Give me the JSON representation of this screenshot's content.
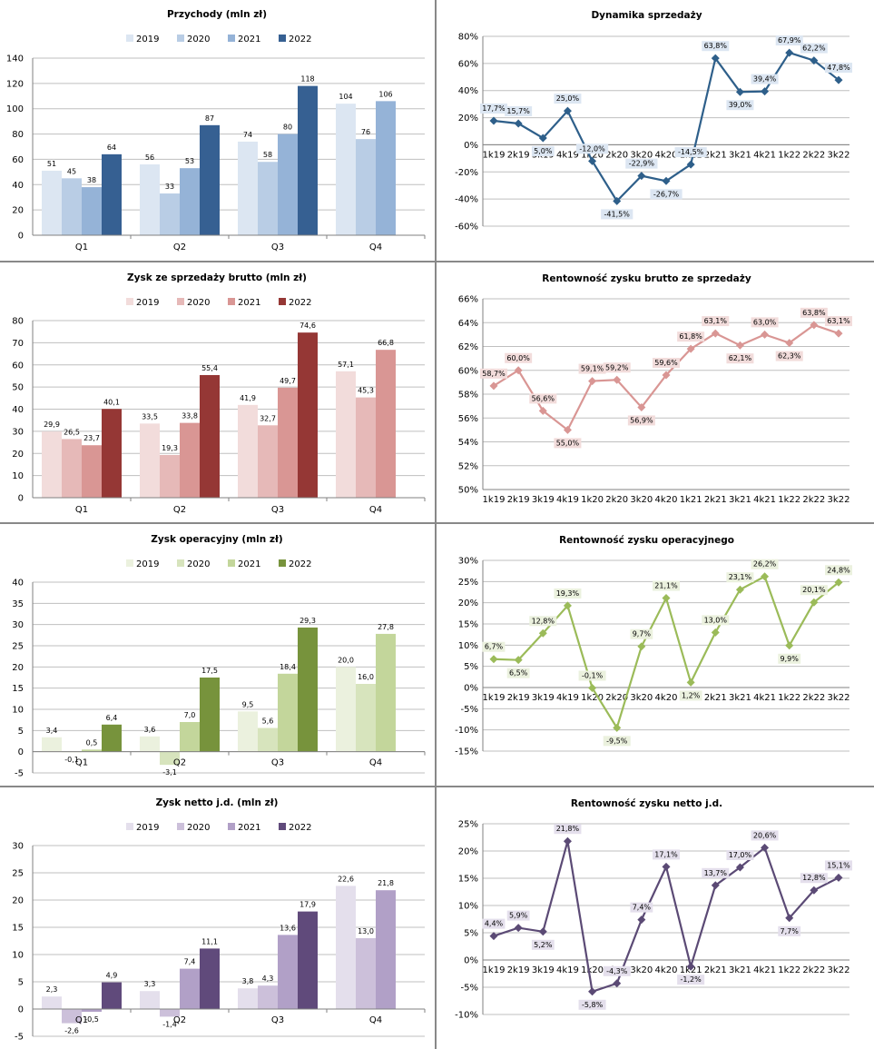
{
  "chart_data": [
    {
      "id": "rev",
      "type": "bar",
      "title": "Przychody  (mln zł)",
      "categories": [
        "Q1",
        "Q2",
        "Q3",
        "Q4"
      ],
      "series": [
        {
          "name": "2019",
          "values": [
            51,
            56,
            74,
            104
          ]
        },
        {
          "name": "2020",
          "values": [
            45,
            33,
            58,
            76
          ]
        },
        {
          "name": "2021",
          "values": [
            38,
            53,
            80,
            106
          ]
        },
        {
          "name": "2022",
          "values": [
            64,
            87,
            118,
            null
          ]
        }
      ],
      "value_labels": [
        [
          "51",
          "56",
          "74",
          "104"
        ],
        [
          "45",
          "33",
          "58",
          "76"
        ],
        [
          "38",
          "53",
          "80",
          "106"
        ],
        [
          "64",
          "87",
          "118",
          ""
        ]
      ],
      "ylim": [
        0,
        140
      ],
      "yticks": [
        "0",
        "20",
        "40",
        "60",
        "80",
        "100",
        "120",
        "140"
      ],
      "colors": [
        "#dce6f2",
        "#b9cde5",
        "#95b3d7",
        "#366092"
      ],
      "legend": "top",
      "grid": true
    },
    {
      "id": "dyn",
      "type": "line",
      "title": "Dynamika sprzedaży",
      "x": [
        "1k19",
        "2k19",
        "3k19",
        "4k19",
        "1k20",
        "2k20",
        "3k20",
        "4k20",
        "1k21",
        "2k21",
        "3k21",
        "4k21",
        "1k22",
        "2k22",
        "3k22"
      ],
      "values": [
        17.7,
        15.7,
        5.0,
        25.0,
        -12.0,
        -41.5,
        -22.9,
        -26.7,
        -14.5,
        63.8,
        39.0,
        39.4,
        67.9,
        62.2,
        47.8
      ],
      "value_labels": [
        "17,7%",
        "15,7%",
        "5,0%",
        "25,0%",
        "-12,0%",
        "-41,5%",
        "-22,9%",
        "-26,7%",
        "-14,5%",
        "63,8%",
        "39,0%",
        "39,4%",
        "67,9%",
        "62,2%",
        "47,8%"
      ],
      "ylim": [
        -60,
        80
      ],
      "yticks": [
        "-60%",
        "-40%",
        "-20%",
        "0%",
        "20%",
        "40%",
        "60%",
        "80%"
      ],
      "color": "#2e5f8a",
      "label_bg": "#dce6f2",
      "grid": true
    },
    {
      "id": "gross",
      "type": "bar",
      "title": "Zysk ze sprzedaży brutto  (mln zł)",
      "categories": [
        "Q1",
        "Q2",
        "Q3",
        "Q4"
      ],
      "series": [
        {
          "name": "2019",
          "values": [
            29.9,
            33.5,
            41.9,
            57.1
          ]
        },
        {
          "name": "2020",
          "values": [
            26.5,
            19.3,
            32.7,
            45.3
          ]
        },
        {
          "name": "2021",
          "values": [
            23.7,
            33.8,
            49.7,
            66.8
          ]
        },
        {
          "name": "2022",
          "values": [
            40.1,
            55.4,
            74.6,
            null
          ]
        }
      ],
      "value_labels": [
        [
          "29,9",
          "33,5",
          "41,9",
          "57,1"
        ],
        [
          "26,5",
          "19,3",
          "32,7",
          "45,3"
        ],
        [
          "23,7",
          "33,8",
          "49,7",
          "66,8"
        ],
        [
          "40,1",
          "55,4",
          "74,6",
          ""
        ]
      ],
      "ylim": [
        0,
        80
      ],
      "yticks": [
        "0",
        "10",
        "20",
        "30",
        "40",
        "50",
        "60",
        "70",
        "80"
      ],
      "colors": [
        "#f2dcdb",
        "#e6b9b8",
        "#d99694",
        "#953735"
      ],
      "legend": "top",
      "grid": true
    },
    {
      "id": "grossm",
      "type": "line",
      "title": "Rentowność  zysku brutto  ze sprzedaży",
      "x": [
        "1k19",
        "2k19",
        "3k19",
        "4k19",
        "1k20",
        "2k20",
        "3k20",
        "4k20",
        "1k21",
        "2k21",
        "3k21",
        "4k21",
        "1k22",
        "2k22",
        "3k22"
      ],
      "values": [
        58.7,
        60.0,
        56.6,
        55.0,
        59.1,
        59.2,
        56.9,
        59.6,
        61.8,
        63.1,
        62.1,
        63.0,
        62.3,
        63.8,
        63.1
      ],
      "value_labels": [
        "58,7%",
        "60,0%",
        "56,6%",
        "55,0%",
        "59,1%",
        "59,2%",
        "56,9%",
        "59,6%",
        "61,8%",
        "63,1%",
        "62,1%",
        "63,0%",
        "62,3%",
        "63,8%",
        "63,1%"
      ],
      "ylim": [
        50,
        66
      ],
      "yticks": [
        "50%",
        "52%",
        "54%",
        "56%",
        "58%",
        "60%",
        "62%",
        "64%",
        "66%"
      ],
      "color": "#d99694",
      "label_bg": "#f2dcdb",
      "grid": true
    },
    {
      "id": "oper",
      "type": "bar",
      "title": "Zysk operacyjny  (mln zł)",
      "categories": [
        "Q1",
        "Q2",
        "Q3",
        "Q4"
      ],
      "series": [
        {
          "name": "2019",
          "values": [
            3.4,
            3.6,
            9.5,
            20.0
          ]
        },
        {
          "name": "2020",
          "values": [
            -0.1,
            -3.1,
            5.6,
            16.0
          ]
        },
        {
          "name": "2021",
          "values": [
            0.5,
            7.0,
            18.4,
            27.8
          ]
        },
        {
          "name": "2022",
          "values": [
            6.4,
            17.5,
            29.3,
            null
          ]
        }
      ],
      "value_labels": [
        [
          "3,4",
          "3,6",
          "9,5",
          "20,0"
        ],
        [
          "-0,1",
          "-3,1",
          "5,6",
          "16,0"
        ],
        [
          "0,5",
          "7,0",
          "18,4",
          "27,8"
        ],
        [
          "6,4",
          "17,5",
          "29,3",
          ""
        ]
      ],
      "ylim": [
        -5,
        40
      ],
      "yticks": [
        "-5",
        "0",
        "5",
        "10",
        "15",
        "20",
        "25",
        "30",
        "35",
        "40"
      ],
      "colors": [
        "#ebf1de",
        "#d7e4bd",
        "#c3d69b",
        "#77933c"
      ],
      "legend": "top",
      "grid": true
    },
    {
      "id": "operm",
      "type": "line",
      "title": "Rentowność  zysku operacyjnego",
      "x": [
        "1k19",
        "2k19",
        "3k19",
        "4k19",
        "1k20",
        "2k20",
        "3k20",
        "4k20",
        "1k21",
        "2k21",
        "3k21",
        "4k21",
        "1k22",
        "2k22",
        "3k22"
      ],
      "values": [
        6.7,
        6.5,
        12.8,
        19.3,
        -0.1,
        -9.5,
        9.7,
        21.1,
        1.2,
        13.0,
        23.1,
        26.2,
        9.9,
        20.1,
        24.8
      ],
      "value_labels": [
        "6,7%",
        "6,5%",
        "12,8%",
        "19,3%",
        "-0,1%",
        "-9,5%",
        "9,7%",
        "21,1%",
        "1,2%",
        "13,0%",
        "23,1%",
        "26,2%",
        "9,9%",
        "20,1%",
        "24,8%"
      ],
      "ylim": [
        -15,
        30
      ],
      "yticks": [
        "-15%",
        "-10%",
        "-5%",
        "0%",
        "5%",
        "10%",
        "15%",
        "20%",
        "25%",
        "30%"
      ],
      "color": "#9bbb59",
      "label_bg": "#ebf1de",
      "grid": true
    },
    {
      "id": "net",
      "type": "bar",
      "title": "Zysk netto  j.d.  (mln zł)",
      "categories": [
        "Q1",
        "Q2",
        "Q3",
        "Q4"
      ],
      "series": [
        {
          "name": "2019",
          "values": [
            2.3,
            3.3,
            3.8,
            22.6
          ]
        },
        {
          "name": "2020",
          "values": [
            -2.6,
            -1.4,
            4.3,
            13.0
          ]
        },
        {
          "name": "2021",
          "values": [
            -0.5,
            7.4,
            13.6,
            21.8
          ]
        },
        {
          "name": "2022",
          "values": [
            4.9,
            11.1,
            17.9,
            null
          ]
        }
      ],
      "value_labels": [
        [
          "2,3",
          "3,3",
          "3,8",
          "22,6"
        ],
        [
          "-2,6",
          "-1,4",
          "4,3",
          "13,0"
        ],
        [
          "-0,5",
          "7,4",
          "13,6",
          "21,8"
        ],
        [
          "4,9",
          "11,1",
          "17,9",
          ""
        ]
      ],
      "ylim": [
        -5,
        30
      ],
      "yticks": [
        "-5",
        "0",
        "5",
        "10",
        "15",
        "20",
        "25",
        "30"
      ],
      "colors": [
        "#e4dfec",
        "#ccc0da",
        "#b1a0c7",
        "#604a7b"
      ],
      "legend": "top",
      "grid": true
    },
    {
      "id": "netm",
      "type": "line",
      "title": "Rentowność  zysku netto  j.d.",
      "x": [
        "1k19",
        "2k19",
        "3k19",
        "4k19",
        "1k20",
        "2k20",
        "3k20",
        "4k20",
        "1k21",
        "2k21",
        "3k21",
        "4k21",
        "1k22",
        "2k22",
        "3k22"
      ],
      "values": [
        4.4,
        5.9,
        5.2,
        21.8,
        -5.8,
        -4.3,
        7.4,
        17.1,
        -1.2,
        13.7,
        17.0,
        20.6,
        7.7,
        12.8,
        15.1
      ],
      "value_labels": [
        "4,4%",
        "5,9%",
        "5,2%",
        "21,8%",
        "-5,8%",
        "-4,3%",
        "7,4%",
        "17,1%",
        "-1,2%",
        "13,7%",
        "17,0%",
        "20,6%",
        "7,7%",
        "12,8%",
        "15,1%"
      ],
      "ylim": [
        -10,
        25
      ],
      "yticks": [
        "-10%",
        "-5%",
        "0%",
        "5%",
        "10%",
        "15%",
        "20%",
        "25%"
      ],
      "color": "#5b4a75",
      "label_bg": "#e4dfec",
      "grid": true
    }
  ]
}
